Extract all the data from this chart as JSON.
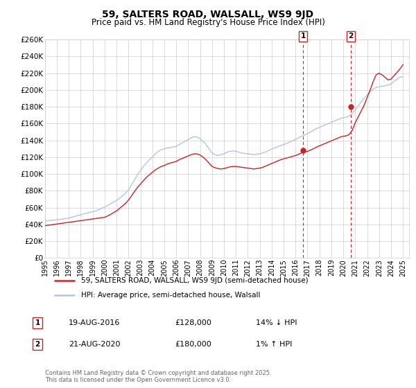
{
  "title": "59, SALTERS ROAD, WALSALL, WS9 9JD",
  "subtitle": "Price paid vs. HM Land Registry's House Price Index (HPI)",
  "ylim": [
    0,
    260000
  ],
  "yticks": [
    0,
    20000,
    40000,
    60000,
    80000,
    100000,
    120000,
    140000,
    160000,
    180000,
    200000,
    220000,
    240000,
    260000
  ],
  "xlim_start": 1995.0,
  "xlim_end": 2025.5,
  "grid_color": "#cccccc",
  "background_color": "#ffffff",
  "hpi_line_color": "#aec6e8",
  "price_line_color": "#cc2222",
  "event1_date": 2016.635,
  "event1_price": 128000,
  "event1_label": "1",
  "event2_date": 2020.635,
  "event2_price": 180000,
  "event2_label": "2",
  "legend_label_price": "59, SALTERS ROAD, WALSALL, WS9 9JD (semi-detached house)",
  "legend_label_hpi": "HPI: Average price, semi-detached house, Walsall",
  "annotation1_box_label": "1",
  "annotation1_date_str": "19-AUG-2016",
  "annotation1_price_str": "£128,000",
  "annotation1_hpi_str": "14% ↓ HPI",
  "annotation2_box_label": "2",
  "annotation2_date_str": "21-AUG-2020",
  "annotation2_price_str": "£180,000",
  "annotation2_hpi_str": "1% ↑ HPI",
  "footer": "Contains HM Land Registry data © Crown copyright and database right 2025.\nThis data is licensed under the Open Government Licence v3.0.",
  "hpi_data": [
    [
      1995.0,
      44000
    ],
    [
      1995.25,
      44500
    ],
    [
      1995.5,
      44800
    ],
    [
      1995.75,
      45200
    ],
    [
      1996.0,
      45500
    ],
    [
      1996.25,
      46000
    ],
    [
      1996.5,
      46500
    ],
    [
      1996.75,
      47000
    ],
    [
      1997.0,
      47500
    ],
    [
      1997.25,
      48500
    ],
    [
      1997.5,
      49500
    ],
    [
      1997.75,
      50500
    ],
    [
      1998.0,
      51500
    ],
    [
      1998.25,
      52500
    ],
    [
      1998.5,
      53500
    ],
    [
      1998.75,
      54500
    ],
    [
      1999.0,
      55000
    ],
    [
      1999.25,
      56000
    ],
    [
      1999.5,
      57500
    ],
    [
      1999.75,
      59000
    ],
    [
      2000.0,
      60500
    ],
    [
      2000.25,
      62500
    ],
    [
      2000.5,
      64500
    ],
    [
      2000.75,
      66500
    ],
    [
      2001.0,
      68500
    ],
    [
      2001.25,
      71000
    ],
    [
      2001.5,
      74000
    ],
    [
      2001.75,
      77000
    ],
    [
      2002.0,
      81000
    ],
    [
      2002.25,
      87000
    ],
    [
      2002.5,
      93000
    ],
    [
      2002.75,
      99000
    ],
    [
      2003.0,
      104000
    ],
    [
      2003.25,
      109000
    ],
    [
      2003.5,
      113000
    ],
    [
      2003.75,
      117000
    ],
    [
      2004.0,
      120000
    ],
    [
      2004.25,
      124000
    ],
    [
      2004.5,
      127000
    ],
    [
      2004.75,
      129000
    ],
    [
      2005.0,
      130000
    ],
    [
      2005.25,
      131000
    ],
    [
      2005.5,
      131500
    ],
    [
      2005.75,
      132000
    ],
    [
      2006.0,
      133000
    ],
    [
      2006.25,
      135000
    ],
    [
      2006.5,
      137000
    ],
    [
      2006.75,
      139000
    ],
    [
      2007.0,
      141000
    ],
    [
      2007.25,
      143000
    ],
    [
      2007.5,
      144500
    ],
    [
      2007.75,
      144000
    ],
    [
      2008.0,
      142000
    ],
    [
      2008.25,
      139000
    ],
    [
      2008.5,
      135000
    ],
    [
      2008.75,
      130000
    ],
    [
      2009.0,
      125000
    ],
    [
      2009.25,
      123000
    ],
    [
      2009.5,
      122000
    ],
    [
      2009.75,
      123000
    ],
    [
      2010.0,
      124000
    ],
    [
      2010.25,
      126000
    ],
    [
      2010.5,
      127000
    ],
    [
      2010.75,
      127500
    ],
    [
      2011.0,
      127000
    ],
    [
      2011.25,
      126000
    ],
    [
      2011.5,
      125000
    ],
    [
      2011.75,
      124500
    ],
    [
      2012.0,
      124000
    ],
    [
      2012.25,
      123500
    ],
    [
      2012.5,
      123000
    ],
    [
      2012.75,
      123500
    ],
    [
      2013.0,
      124000
    ],
    [
      2013.25,
      125000
    ],
    [
      2013.5,
      126500
    ],
    [
      2013.75,
      128000
    ],
    [
      2014.0,
      129500
    ],
    [
      2014.25,
      131000
    ],
    [
      2014.5,
      132500
    ],
    [
      2014.75,
      134000
    ],
    [
      2015.0,
      135000
    ],
    [
      2015.25,
      136500
    ],
    [
      2015.5,
      138000
    ],
    [
      2015.75,
      139500
    ],
    [
      2016.0,
      141000
    ],
    [
      2016.25,
      143000
    ],
    [
      2016.5,
      145000
    ],
    [
      2016.75,
      146500
    ],
    [
      2017.0,
      148000
    ],
    [
      2017.25,
      150000
    ],
    [
      2017.5,
      152000
    ],
    [
      2017.75,
      154000
    ],
    [
      2018.0,
      155500
    ],
    [
      2018.25,
      157000
    ],
    [
      2018.5,
      158500
    ],
    [
      2018.75,
      160000
    ],
    [
      2019.0,
      161500
    ],
    [
      2019.25,
      163000
    ],
    [
      2019.5,
      164500
    ],
    [
      2019.75,
      166000
    ],
    [
      2020.0,
      167000
    ],
    [
      2020.25,
      167500
    ],
    [
      2020.5,
      169000
    ],
    [
      2020.75,
      172000
    ],
    [
      2021.0,
      176000
    ],
    [
      2021.25,
      181000
    ],
    [
      2021.5,
      186000
    ],
    [
      2021.75,
      190000
    ],
    [
      2022.0,
      194000
    ],
    [
      2022.25,
      198000
    ],
    [
      2022.5,
      201000
    ],
    [
      2022.75,
      203000
    ],
    [
      2023.0,
      204000
    ],
    [
      2023.25,
      204500
    ],
    [
      2023.5,
      205000
    ],
    [
      2023.75,
      206000
    ],
    [
      2024.0,
      207000
    ],
    [
      2024.25,
      210000
    ],
    [
      2024.5,
      213000
    ],
    [
      2024.75,
      215000
    ],
    [
      2025.0,
      216000
    ]
  ],
  "price_data": [
    [
      1995.0,
      38500
    ],
    [
      1995.25,
      39000
    ],
    [
      1995.5,
      39500
    ],
    [
      1995.75,
      40000
    ],
    [
      1996.0,
      40500
    ],
    [
      1996.25,
      41000
    ],
    [
      1996.5,
      41500
    ],
    [
      1996.75,
      42000
    ],
    [
      1997.0,
      42500
    ],
    [
      1997.25,
      43000
    ],
    [
      1997.5,
      43500
    ],
    [
      1997.75,
      44000
    ],
    [
      1998.0,
      44500
    ],
    [
      1998.25,
      45000
    ],
    [
      1998.5,
      45500
    ],
    [
      1998.75,
      46000
    ],
    [
      1999.0,
      46500
    ],
    [
      1999.25,
      47000
    ],
    [
      1999.5,
      47500
    ],
    [
      1999.75,
      48000
    ],
    [
      2000.0,
      48500
    ],
    [
      2000.25,
      50000
    ],
    [
      2000.5,
      52000
    ],
    [
      2000.75,
      54000
    ],
    [
      2001.0,
      56000
    ],
    [
      2001.25,
      59000
    ],
    [
      2001.5,
      62000
    ],
    [
      2001.75,
      65000
    ],
    [
      2002.0,
      69000
    ],
    [
      2002.25,
      74000
    ],
    [
      2002.5,
      79000
    ],
    [
      2002.75,
      84000
    ],
    [
      2003.0,
      88000
    ],
    [
      2003.25,
      92000
    ],
    [
      2003.5,
      96000
    ],
    [
      2003.75,
      99000
    ],
    [
      2004.0,
      102000
    ],
    [
      2004.25,
      105000
    ],
    [
      2004.5,
      107000
    ],
    [
      2004.75,
      109000
    ],
    [
      2005.0,
      110000
    ],
    [
      2005.25,
      112000
    ],
    [
      2005.5,
      113000
    ],
    [
      2005.75,
      114000
    ],
    [
      2006.0,
      115000
    ],
    [
      2006.25,
      117000
    ],
    [
      2006.5,
      118500
    ],
    [
      2006.75,
      120000
    ],
    [
      2007.0,
      121500
    ],
    [
      2007.25,
      123000
    ],
    [
      2007.5,
      124000
    ],
    [
      2007.75,
      124000
    ],
    [
      2008.0,
      122500
    ],
    [
      2008.25,
      120000
    ],
    [
      2008.5,
      117000
    ],
    [
      2008.75,
      113000
    ],
    [
      2009.0,
      109000
    ],
    [
      2009.25,
      107500
    ],
    [
      2009.5,
      106500
    ],
    [
      2009.75,
      106000
    ],
    [
      2010.0,
      106500
    ],
    [
      2010.25,
      107500
    ],
    [
      2010.5,
      108500
    ],
    [
      2010.75,
      109000
    ],
    [
      2011.0,
      109000
    ],
    [
      2011.25,
      108500
    ],
    [
      2011.5,
      108000
    ],
    [
      2011.75,
      107500
    ],
    [
      2012.0,
      107000
    ],
    [
      2012.25,
      106500
    ],
    [
      2012.5,
      106000
    ],
    [
      2012.75,
      106500
    ],
    [
      2013.0,
      107000
    ],
    [
      2013.25,
      108000
    ],
    [
      2013.5,
      109500
    ],
    [
      2013.75,
      111000
    ],
    [
      2014.0,
      112500
    ],
    [
      2014.25,
      114000
    ],
    [
      2014.5,
      115500
    ],
    [
      2014.75,
      117000
    ],
    [
      2015.0,
      118000
    ],
    [
      2015.25,
      119000
    ],
    [
      2015.5,
      120000
    ],
    [
      2015.75,
      121000
    ],
    [
      2016.0,
      122000
    ],
    [
      2016.25,
      123500
    ],
    [
      2016.5,
      125000
    ],
    [
      2016.75,
      126000
    ],
    [
      2017.0,
      127000
    ],
    [
      2017.25,
      128500
    ],
    [
      2017.5,
      130000
    ],
    [
      2017.75,
      132000
    ],
    [
      2018.0,
      133500
    ],
    [
      2018.25,
      135000
    ],
    [
      2018.5,
      136500
    ],
    [
      2018.75,
      138000
    ],
    [
      2019.0,
      139500
    ],
    [
      2019.25,
      141000
    ],
    [
      2019.5,
      142500
    ],
    [
      2019.75,
      144000
    ],
    [
      2020.0,
      145000
    ],
    [
      2020.25,
      145500
    ],
    [
      2020.5,
      147000
    ],
    [
      2020.75,
      152000
    ],
    [
      2021.0,
      161000
    ],
    [
      2021.25,
      168000
    ],
    [
      2021.5,
      175000
    ],
    [
      2021.75,
      182000
    ],
    [
      2022.0,
      191000
    ],
    [
      2022.25,
      200000
    ],
    [
      2022.5,
      210000
    ],
    [
      2022.75,
      218000
    ],
    [
      2023.0,
      220000
    ],
    [
      2023.25,
      218000
    ],
    [
      2023.5,
      215000
    ],
    [
      2023.75,
      212000
    ],
    [
      2024.0,
      213000
    ],
    [
      2024.25,
      217000
    ],
    [
      2024.5,
      221000
    ],
    [
      2024.75,
      225000
    ],
    [
      2025.0,
      230000
    ]
  ]
}
